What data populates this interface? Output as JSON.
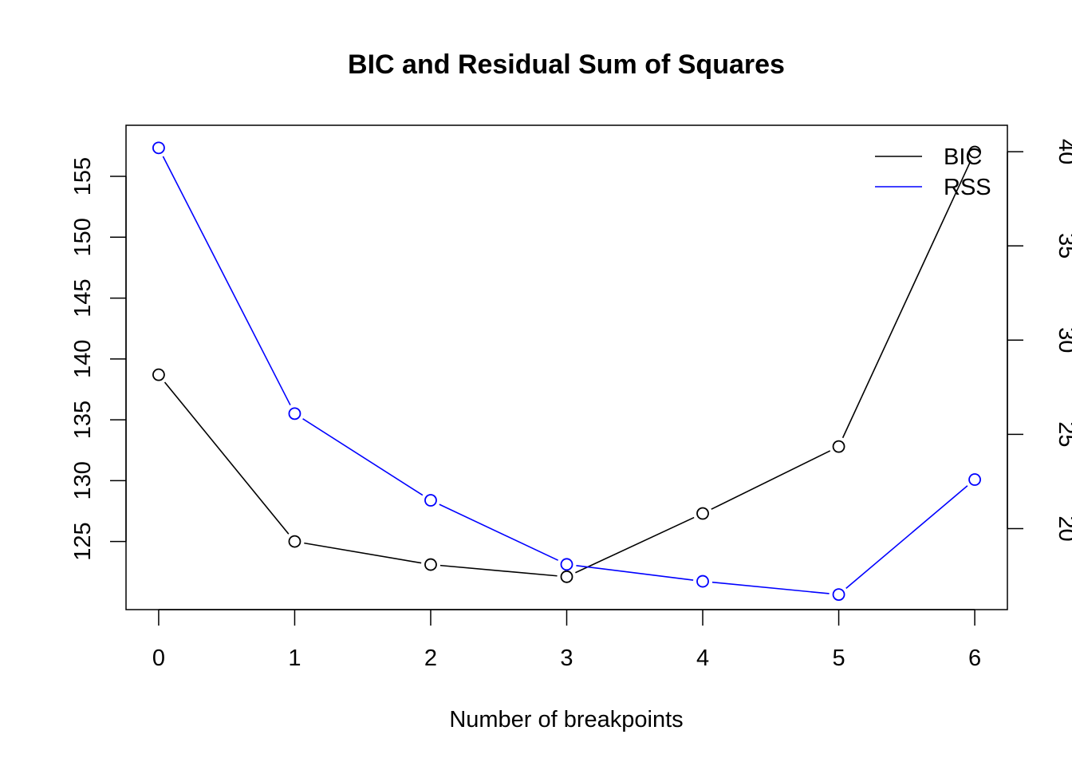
{
  "chart_data": {
    "type": "line",
    "title": "BIC and Residual Sum of Squares",
    "xlabel": "Number of breakpoints",
    "ylabel": "",
    "y2label": "",
    "x": [
      0,
      1,
      2,
      3,
      4,
      5,
      6
    ],
    "xlim": [
      -0.24,
      6.24
    ],
    "x_ticks": [
      0,
      1,
      2,
      3,
      4,
      5,
      6
    ],
    "ylim": [
      119.4,
      159.2
    ],
    "y_ticks": [
      125,
      130,
      135,
      140,
      145,
      150,
      155
    ],
    "y2lim": [
      15.7,
      41.4
    ],
    "y2_ticks": [
      20,
      25,
      30,
      35,
      40
    ],
    "grid": false,
    "legend_position": "top-right",
    "series": [
      {
        "name": "BIC",
        "axis": "left",
        "color": "#000000",
        "values": [
          138.7,
          125.0,
          123.1,
          122.1,
          127.3,
          132.8,
          157.0
        ]
      },
      {
        "name": "RSS",
        "axis": "right",
        "color": "#0000ff",
        "values": [
          40.2,
          26.1,
          21.5,
          18.1,
          17.2,
          16.5,
          22.6
        ]
      }
    ]
  }
}
